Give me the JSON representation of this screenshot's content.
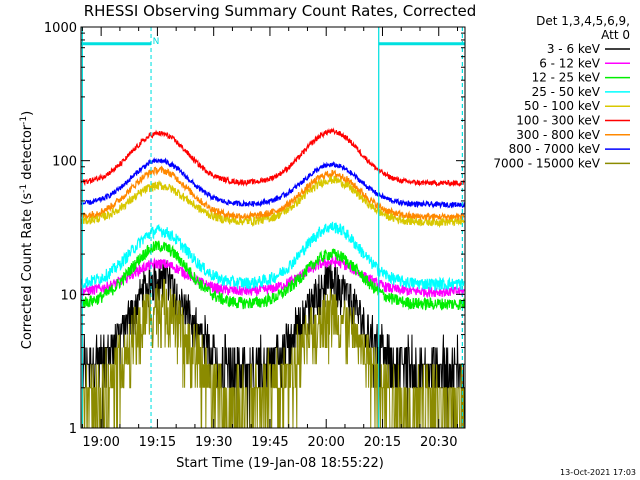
{
  "chart_data": {
    "type": "line",
    "title": "RHESSI Observing Summary Count Rates, Corrected",
    "xlabel": "Start Time (19-Jan-08 18:55:22)",
    "ylabel_main": "Corrected Count Rate (s",
    "ylabel_sup1": "-1",
    "ylabel_mid": " detector",
    "ylabel_sup2": "-1",
    "ylabel_end": ")",
    "yscale": "log",
    "ylim": [
      1,
      1000
    ],
    "xlim_minutes": [
      -5.37,
      97.0
    ],
    "x_ticks": [
      {
        "label": "19:00",
        "min": 0
      },
      {
        "label": "19:15",
        "min": 15
      },
      {
        "label": "19:30",
        "min": 30
      },
      {
        "label": "19:45",
        "min": 45
      },
      {
        "label": "20:00",
        "min": 60
      },
      {
        "label": "20:15",
        "min": 75
      },
      {
        "label": "20:30",
        "min": 90
      }
    ],
    "y_ticks": [
      {
        "label": "1",
        "value": 1
      },
      {
        "label": "10",
        "value": 10
      },
      {
        "label": "100",
        "value": 100
      },
      {
        "label": "1000",
        "value": 1000
      }
    ],
    "legend_header": [
      "Det 1,3,4,5,6,9,",
      "Att 0"
    ],
    "legend_position": "right",
    "annotation_n": "N",
    "timestamp": "13-Oct-2021 17:03",
    "night_boundaries_min": [
      -5.0,
      13.3,
      74.0,
      96.3
    ],
    "night_bars": [
      [
        -5.37,
        13.3
      ],
      [
        74.0,
        97.0
      ]
    ],
    "series": [
      {
        "name": "3 - 6 keV",
        "color": "#000000",
        "base": 2.8,
        "peak1": 13.5,
        "peak2": 12.5,
        "noise": 0.12
      },
      {
        "name": "6 - 12 keV",
        "color": "#ff00ff",
        "base": 10.5,
        "peak1": 17,
        "peak2": 17.5,
        "noise": 0.03
      },
      {
        "name": "12 - 25 keV",
        "color": "#00ee00",
        "base": 8.5,
        "peak1": 23,
        "peak2": 20,
        "noise": 0.035
      },
      {
        "name": "25 - 50 keV",
        "color": "#00ffff",
        "base": 12,
        "peak1": 30,
        "peak2": 32,
        "noise": 0.035
      },
      {
        "name": "50 - 100 keV",
        "color": "#d8c800",
        "base": 35,
        "peak1": 65,
        "peak2": 72,
        "noise": 0.025
      },
      {
        "name": "100 - 300 keV",
        "color": "#ff0000",
        "base": 68,
        "peak1": 160,
        "peak2": 165,
        "noise": 0.015
      },
      {
        "name": "300 - 800 keV",
        "color": "#ff8800",
        "base": 38,
        "peak1": 85,
        "peak2": 80,
        "noise": 0.02
      },
      {
        "name": "800 - 7000 keV",
        "color": "#0000ff",
        "base": 47,
        "peak1": 100,
        "peak2": 93,
        "noise": 0.015
      },
      {
        "name": "7000 - 15000 keV",
        "color": "#8b8b00",
        "base": 1.6,
        "peak1": 8.5,
        "peak2": 7.5,
        "noise": 0.18
      }
    ],
    "peak_times_min": [
      15.5,
      61.5
    ]
  }
}
